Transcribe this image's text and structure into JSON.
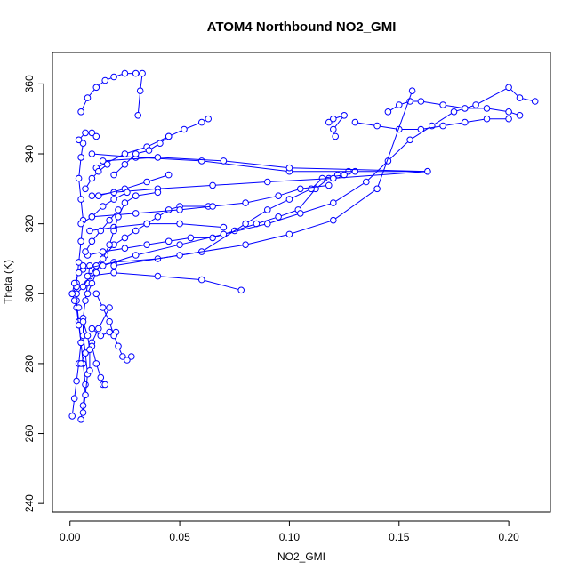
{
  "chart_data": {
    "type": "line",
    "title": "ATOM4 Northbound NO2_GMI",
    "xlabel": "NO2_GMI",
    "ylabel": "Theta (K)",
    "xlim": [
      -0.008,
      0.219
    ],
    "ylim": [
      237.5,
      369
    ],
    "grid": false,
    "legend": "none",
    "x_ticks": [
      0.0,
      0.05,
      0.1,
      0.15,
      0.2
    ],
    "x_tick_labels": [
      "0.00",
      "0.05",
      "0.10",
      "0.15",
      "0.20"
    ],
    "y_ticks": [
      240,
      260,
      280,
      300,
      320,
      340,
      360
    ],
    "y_tick_labels": [
      "240",
      "260",
      "280",
      "300",
      "320",
      "340",
      "360"
    ],
    "series": [
      {
        "color": "#0000ff",
        "marker": "open-circle",
        "segments": [
          [
            [
              0.001,
              265
            ],
            [
              0.002,
              270
            ],
            [
              0.003,
              275
            ],
            [
              0.004,
              280
            ],
            [
              0.005,
              286
            ],
            [
              0.004,
              292
            ],
            [
              0.003,
              298
            ],
            [
              0.003,
              303
            ],
            [
              0.004,
              309
            ],
            [
              0.005,
              315
            ],
            [
              0.006,
              321
            ],
            [
              0.005,
              327
            ],
            [
              0.004,
              333
            ],
            [
              0.005,
              339
            ],
            [
              0.006,
              343
            ]
          ],
          [
            [
              0.005,
              264
            ],
            [
              0.006,
              268
            ],
            [
              0.007,
              274
            ],
            [
              0.006,
              280
            ],
            [
              0.005,
              286
            ],
            [
              0.004,
              291
            ],
            [
              0.003,
              296
            ],
            [
              0.001,
              300
            ],
            [
              0.003,
              302
            ]
          ],
          [
            [
              0.006,
              266
            ],
            [
              0.007,
              271
            ],
            [
              0.008,
              277
            ],
            [
              0.007,
              283
            ],
            [
              0.006,
              288
            ],
            [
              0.006,
              293
            ],
            [
              0.007,
              298
            ],
            [
              0.008,
              303
            ],
            [
              0.009,
              308
            ]
          ],
          [
            [
              0.003,
              300
            ],
            [
              0.006,
              302
            ],
            [
              0.009,
              305
            ],
            [
              0.012,
              308
            ],
            [
              0.016,
              311
            ],
            [
              0.02,
              314
            ],
            [
              0.025,
              316
            ],
            [
              0.03,
              318
            ],
            [
              0.035,
              320
            ],
            [
              0.04,
              322
            ],
            [
              0.045,
              324
            ],
            [
              0.05,
              325
            ],
            [
              0.063,
              325
            ]
          ],
          [
            [
              0.008,
              311
            ],
            [
              0.015,
              312
            ],
            [
              0.025,
              313
            ],
            [
              0.035,
              314
            ],
            [
              0.045,
              315
            ],
            [
              0.055,
              316
            ],
            [
              0.065,
              316
            ],
            [
              0.075,
              318
            ],
            [
              0.085,
              320
            ],
            [
              0.095,
              322
            ],
            [
              0.104,
              324
            ],
            [
              0.112,
              330
            ],
            [
              0.118,
              333
            ],
            [
              0.122,
              334
            ],
            [
              0.127,
              335
            ]
          ],
          [
            [
              0.006,
              307
            ],
            [
              0.02,
              309
            ],
            [
              0.04,
              310
            ],
            [
              0.06,
              312
            ],
            [
              0.08,
              320
            ],
            [
              0.09,
              324
            ],
            [
              0.1,
              327
            ],
            [
              0.11,
              330
            ],
            [
              0.115,
              333
            ],
            [
              0.125,
              334
            ]
          ],
          [
            [
              0.008,
              305
            ],
            [
              0.02,
              306
            ],
            [
              0.04,
              305
            ],
            [
              0.06,
              304
            ],
            [
              0.078,
              301
            ]
          ],
          [
            [
              0.004,
              344
            ],
            [
              0.007,
              346
            ],
            [
              0.01,
              346
            ],
            [
              0.012,
              345
            ]
          ],
          [
            [
              0.005,
              352
            ],
            [
              0.008,
              356
            ],
            [
              0.012,
              359
            ],
            [
              0.016,
              361
            ],
            [
              0.02,
              362
            ],
            [
              0.025,
              363
            ],
            [
              0.03,
              363
            ],
            [
              0.033,
              363
            ],
            [
              0.032,
              358
            ],
            [
              0.031,
              351
            ]
          ],
          [
            [
              0.01,
              340
            ],
            [
              0.03,
              339
            ],
            [
              0.06,
              338
            ],
            [
              0.1,
              335
            ],
            [
              0.13,
              335
            ],
            [
              0.163,
              335
            ],
            [
              0.12,
              333
            ],
            [
              0.09,
              332
            ],
            [
              0.065,
              331
            ],
            [
              0.04,
              330
            ],
            [
              0.02,
              329
            ],
            [
              0.01,
              328
            ]
          ],
          [
            [
              0.015,
              338
            ],
            [
              0.04,
              339
            ],
            [
              0.07,
              338
            ],
            [
              0.1,
              336
            ],
            [
              0.163,
              335
            ]
          ],
          [
            [
              0.012,
              336
            ],
            [
              0.025,
              340
            ],
            [
              0.035,
              342
            ],
            [
              0.045,
              345
            ],
            [
              0.052,
              347
            ],
            [
              0.06,
              349
            ],
            [
              0.063,
              350
            ]
          ],
          [
            [
              0.013,
              328
            ],
            [
              0.025,
              330
            ],
            [
              0.035,
              332
            ],
            [
              0.045,
              334
            ]
          ],
          [
            [
              0.01,
              322
            ],
            [
              0.03,
              323
            ],
            [
              0.05,
              324
            ],
            [
              0.065,
              325
            ],
            [
              0.08,
              326
            ],
            [
              0.095,
              328
            ],
            [
              0.105,
              330
            ],
            [
              0.118,
              331
            ]
          ],
          [
            [
              0.009,
              318
            ],
            [
              0.02,
              319
            ],
            [
              0.035,
              320
            ],
            [
              0.05,
              320
            ],
            [
              0.07,
              319
            ]
          ],
          [
            [
              0.015,
              308
            ],
            [
              0.03,
              311
            ],
            [
              0.05,
              314
            ],
            [
              0.07,
              317
            ],
            [
              0.09,
              320
            ],
            [
              0.105,
              323
            ],
            [
              0.12,
              326
            ],
            [
              0.135,
              332
            ],
            [
              0.145,
              338
            ],
            [
              0.155,
              344
            ],
            [
              0.165,
              348
            ],
            [
              0.175,
              352
            ],
            [
              0.185,
              354
            ],
            [
              0.2,
              359
            ],
            [
              0.205,
              356
            ],
            [
              0.212,
              355
            ]
          ],
          [
            [
              0.145,
              352
            ],
            [
              0.15,
              354
            ],
            [
              0.155,
              355
            ],
            [
              0.16,
              355
            ],
            [
              0.17,
              354
            ],
            [
              0.18,
              353
            ],
            [
              0.19,
              353
            ],
            [
              0.2,
              352
            ],
            [
              0.205,
              351
            ]
          ],
          [
            [
              0.13,
              349
            ],
            [
              0.14,
              348
            ],
            [
              0.15,
              347
            ],
            [
              0.16,
              347
            ],
            [
              0.17,
              348
            ],
            [
              0.18,
              349
            ],
            [
              0.19,
              350
            ],
            [
              0.2,
              350
            ]
          ],
          [
            [
              0.118,
              349
            ],
            [
              0.12,
              350
            ],
            [
              0.125,
              351
            ],
            [
              0.12,
              347
            ],
            [
              0.121,
              345
            ]
          ],
          [
            [
              0.02,
              308
            ],
            [
              0.05,
              311
            ],
            [
              0.08,
              314
            ],
            [
              0.1,
              317
            ],
            [
              0.12,
              321
            ],
            [
              0.14,
              330
            ],
            [
              0.156,
              358
            ]
          ],
          [
            [
              0.005,
              280
            ],
            [
              0.007,
              283
            ],
            [
              0.01,
              286
            ],
            [
              0.013,
              290
            ],
            [
              0.018,
              296
            ]
          ],
          [
            [
              0.01,
              290
            ],
            [
              0.014,
              288
            ],
            [
              0.018,
              289
            ],
            [
              0.021,
              289
            ]
          ],
          [
            [
              0.012,
              300
            ],
            [
              0.015,
              296
            ],
            [
              0.018,
              292
            ],
            [
              0.02,
              288
            ],
            [
              0.022,
              285
            ],
            [
              0.024,
              282
            ],
            [
              0.026,
              281
            ],
            [
              0.028,
              282
            ]
          ],
          [
            [
              0.01,
              285
            ],
            [
              0.012,
              280
            ],
            [
              0.014,
              276
            ],
            [
              0.015,
              274
            ],
            [
              0.016,
              274
            ]
          ],
          [
            [
              0.006,
              292
            ],
            [
              0.008,
              288
            ],
            [
              0.009,
              284
            ],
            [
              0.009,
              278
            ]
          ],
          [
            [
              0.004,
              296
            ],
            [
              0.002,
              298
            ],
            [
              0.001,
              300
            ],
            [
              0.002,
              303
            ],
            [
              0.004,
              306
            ],
            [
              0.006,
              308
            ]
          ],
          [
            [
              0.008,
              300
            ],
            [
              0.01,
              303
            ],
            [
              0.012,
              306
            ],
            [
              0.015,
              310
            ],
            [
              0.018,
              314
            ],
            [
              0.02,
              318
            ],
            [
              0.022,
              322
            ],
            [
              0.025,
              326
            ],
            [
              0.03,
              328
            ],
            [
              0.04,
              329
            ]
          ],
          [
            [
              0.005,
              320
            ],
            [
              0.01,
              322
            ],
            [
              0.015,
              325
            ],
            [
              0.02,
              327
            ],
            [
              0.026,
              329
            ]
          ],
          [
            [
              0.007,
              312
            ],
            [
              0.01,
              315
            ],
            [
              0.014,
              318
            ],
            [
              0.018,
              321
            ],
            [
              0.022,
              324
            ]
          ],
          [
            [
              0.02,
              334
            ],
            [
              0.025,
              337
            ],
            [
              0.03,
              340
            ],
            [
              0.036,
              341
            ],
            [
              0.041,
              343
            ],
            [
              0.045,
              345
            ]
          ],
          [
            [
              0.007,
              330
            ],
            [
              0.01,
              333
            ],
            [
              0.013,
              335
            ],
            [
              0.017,
              337
            ]
          ]
        ]
      }
    ]
  }
}
